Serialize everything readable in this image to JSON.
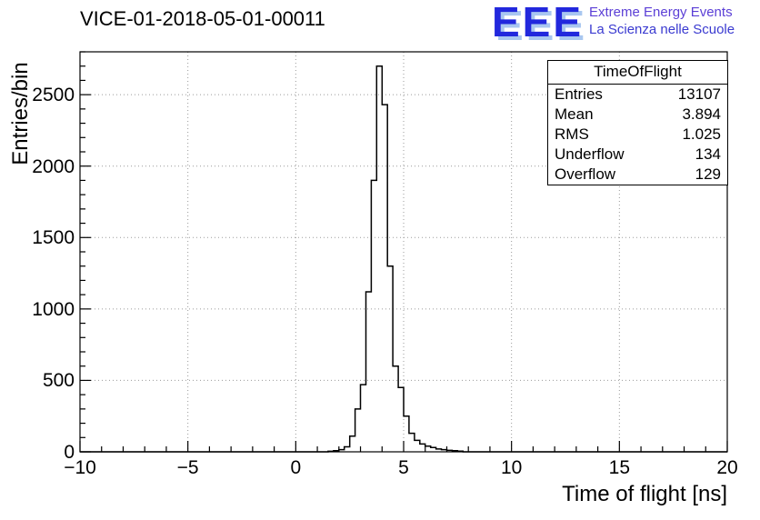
{
  "title": "VICE-01-2018-05-01-00011",
  "logo": {
    "letters": "EEE",
    "line1": "Extreme Energy Events",
    "line2": "La Scienza nelle Scuole",
    "letter_color": "#2228dd",
    "text_color": "#4040cf"
  },
  "stats": {
    "header": "TimeOfFlight",
    "rows": [
      {
        "label": "Entries",
        "value": "13107"
      },
      {
        "label": "Mean",
        "value": "3.894"
      },
      {
        "label": "RMS",
        "value": "1.025"
      },
      {
        "label": "Underflow",
        "value": "134"
      },
      {
        "label": "Overflow",
        "value": "129"
      }
    ]
  },
  "chart_data": {
    "type": "bar",
    "title": "VICE-01-2018-05-01-00011",
    "xlabel": "Time of flight [ns]",
    "ylabel": "Entries/bin",
    "xlim": [
      -10,
      20
    ],
    "ylim": [
      0,
      2800
    ],
    "x_ticks": [
      -10,
      -5,
      0,
      5,
      10,
      15,
      20
    ],
    "y_ticks": [
      0,
      500,
      1000,
      1500,
      2000,
      2500
    ],
    "x_minor_step": 1,
    "y_minor_step": 100,
    "grid": true,
    "legend": "stats-box-top-right",
    "bin_width": 0.25,
    "first_bin": 1.5,
    "values": [
      4,
      8,
      15,
      35,
      110,
      300,
      470,
      1120,
      1900,
      2700,
      2430,
      1300,
      600,
      450,
      250,
      130,
      80,
      55,
      40,
      30,
      20,
      15,
      10,
      8,
      5
    ],
    "line_color": "#000000",
    "grid_color": "#9a9a9a"
  }
}
